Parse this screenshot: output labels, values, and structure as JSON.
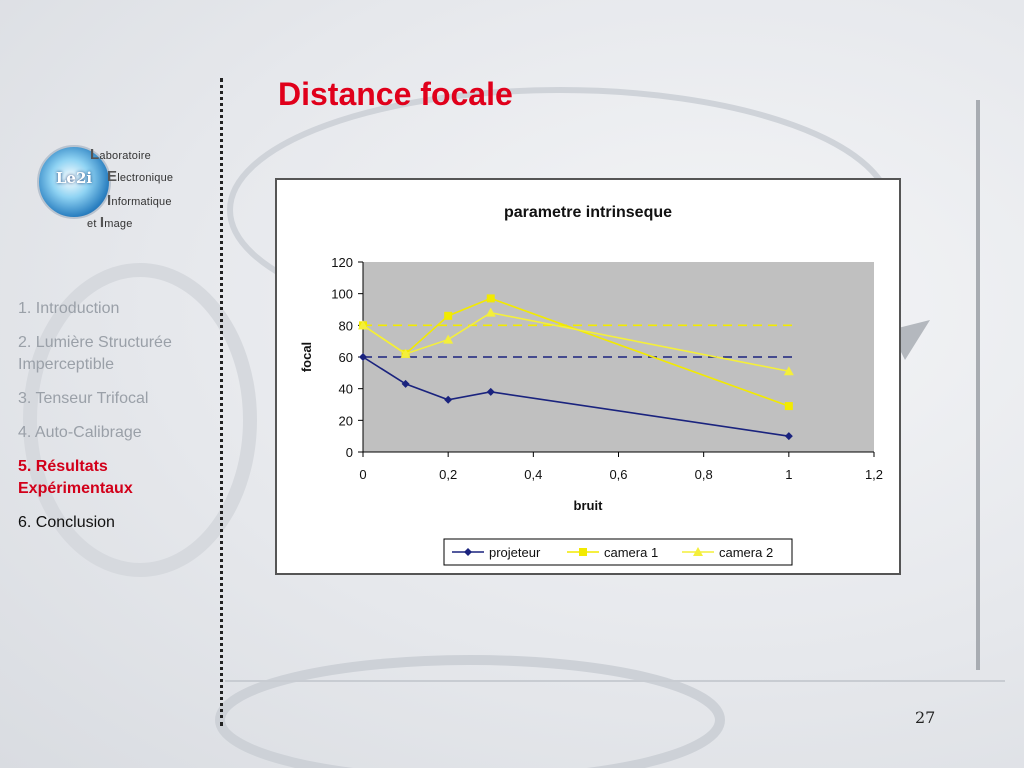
{
  "slide": {
    "title": "Distance focale",
    "page_number": "27"
  },
  "logo": {
    "badge": "Le2i",
    "w1_initial": "L",
    "w1_rest": "aboratoire",
    "w2_initial": "E",
    "w2_rest": "lectronique",
    "w3_initial": "I",
    "w3_rest": "nformatique",
    "w4_prefix": "et ",
    "w4_initial": "I",
    "w4_rest": "mage"
  },
  "outline": [
    {
      "label": "1. Introduction",
      "state": "dim"
    },
    {
      "label": "2. Lumière Structurée Imperceptible",
      "state": "dim"
    },
    {
      "label": "3. Tenseur Trifocal",
      "state": "dim"
    },
    {
      "label": "4. Auto-Calibrage",
      "state": "dim"
    },
    {
      "label": "5. Résultats Expérimentaux",
      "state": "active"
    },
    {
      "label": "6. Conclusion",
      "state": "normal"
    }
  ],
  "colors": {
    "title": "#e0001b",
    "projecteur": "#1a237e",
    "camera1": "#f2ea00",
    "camera2": "#f4ef3a",
    "plot_bg": "#c0c0c0"
  },
  "chart_data": {
    "type": "line",
    "title": "parametre intrinseque",
    "xlabel": "bruit",
    "ylabel": "focal",
    "xlim": [
      0,
      1.2
    ],
    "ylim": [
      0,
      120
    ],
    "x_ticks": [
      "0",
      "0,2",
      "0,4",
      "0,6",
      "0,8",
      "1",
      "1,2"
    ],
    "y_ticks": [
      "0",
      "20",
      "40",
      "60",
      "80",
      "100",
      "120"
    ],
    "legend_position": "bottom",
    "series": [
      {
        "name": "projeteur",
        "marker": "diamond",
        "x": [
          0,
          0.1,
          0.2,
          0.3,
          1
        ],
        "y": [
          60,
          43,
          33,
          38,
          10
        ]
      },
      {
        "name": "camera 1",
        "marker": "square",
        "x": [
          0,
          0.1,
          0.2,
          0.3,
          1
        ],
        "y": [
          80,
          62,
          86,
          97,
          29
        ]
      },
      {
        "name": "camera 2",
        "marker": "triangle",
        "x": [
          0,
          0.1,
          0.2,
          0.3,
          1
        ],
        "y": [
          80,
          62,
          71,
          88,
          51
        ]
      }
    ],
    "reference_lines": [
      {
        "y": 60,
        "style": "dashed",
        "color_key": "projecteur"
      },
      {
        "y": 80,
        "style": "dashed",
        "color_key": "camera1"
      }
    ]
  }
}
